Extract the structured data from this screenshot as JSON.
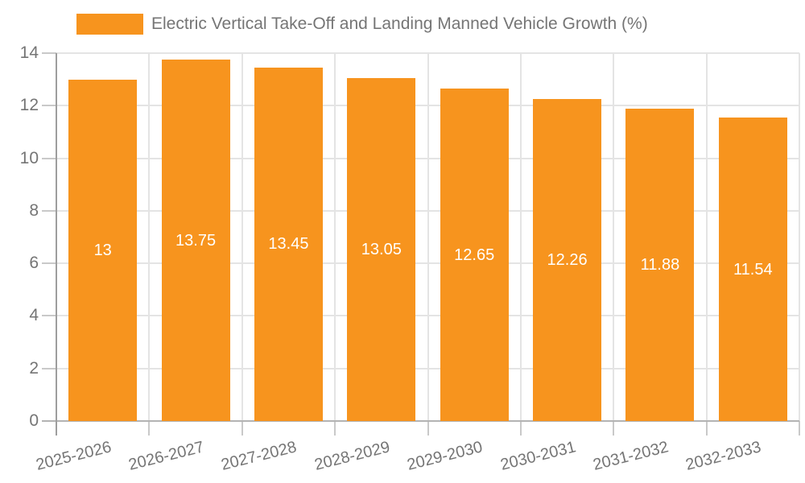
{
  "legend": {
    "label": "Electric Vertical Take-Off and Landing Manned Vehicle Growth (%)"
  },
  "chart_data": {
    "type": "bar",
    "title": "",
    "categories": [
      "2025-2026",
      "2026-2027",
      "2027-2028",
      "2028-2029",
      "2029-2030",
      "2030-2031",
      "2031-2032",
      "2032-2033"
    ],
    "series": [
      {
        "name": "Electric Vertical Take-Off and Landing Manned Vehicle Growth (%)",
        "color": "#F7941E",
        "values": [
          13,
          13.75,
          13.45,
          13.05,
          12.65,
          12.26,
          11.88,
          11.54
        ]
      }
    ],
    "value_labels": [
      "13",
      "13.75",
      "13.45",
      "13.05",
      "12.65",
      "12.26",
      "11.88",
      "11.54"
    ],
    "ylim": [
      0,
      14
    ],
    "yticks": [
      0,
      2,
      4,
      6,
      8,
      10,
      12,
      14
    ],
    "grid": true,
    "legend_position": "top-left",
    "value_label_position": "center-of-bar"
  },
  "colors": {
    "background": "#ffffff",
    "bar": "#F7941E",
    "gridline": "#e4e4e4",
    "tick": "#c9c9c9",
    "x_axis_line": "#b3b3b3",
    "y_axis_line": "#9e9e9e",
    "tick_text": "#757575",
    "legend_text": "#757575",
    "bar_label_text": "#ffffff"
  }
}
